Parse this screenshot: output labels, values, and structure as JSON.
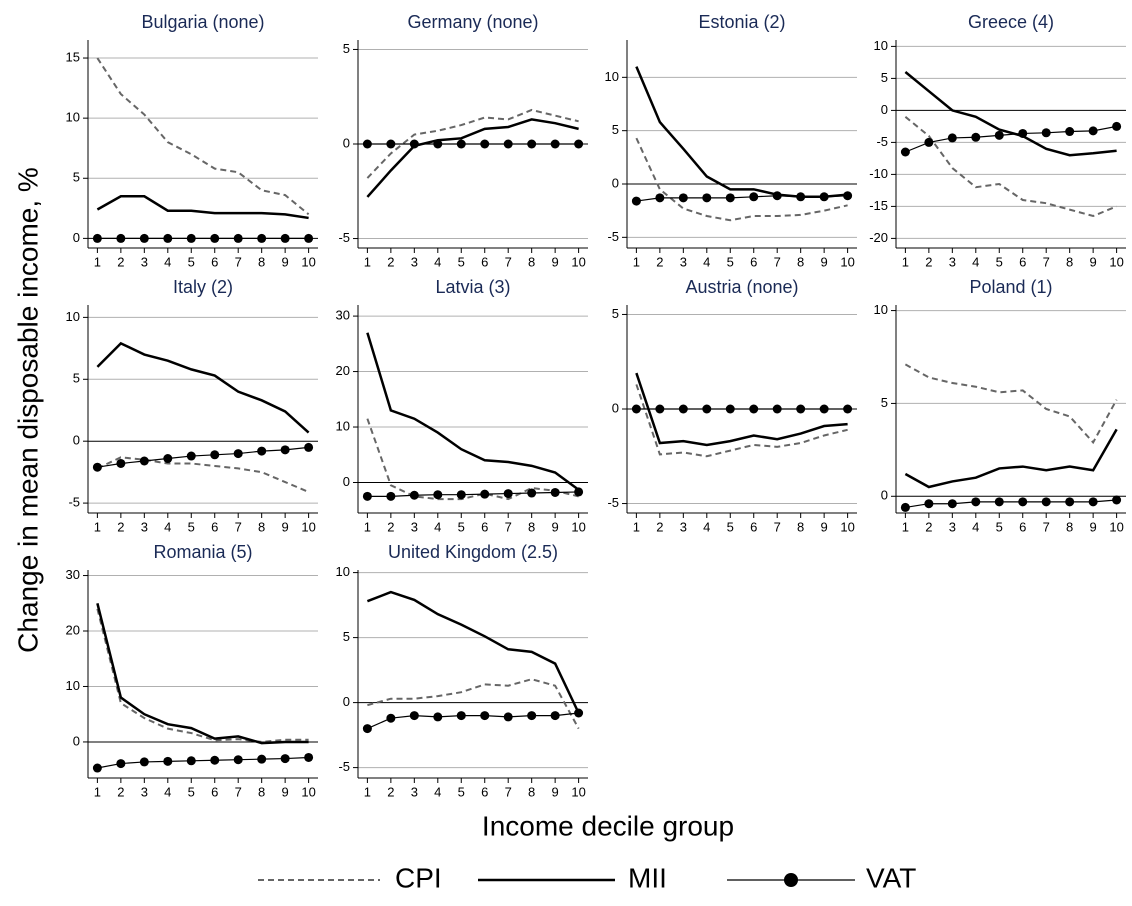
{
  "y_label": "Change in mean disposable income, %",
  "x_label": "Income decile group",
  "chart_data": [
    {
      "type": "line",
      "title": "Bulgaria (none)",
      "x": [
        1,
        2,
        3,
        4,
        5,
        6,
        7,
        8,
        9,
        10
      ],
      "xlim": [
        0.6,
        10.4
      ],
      "xticks": [
        1,
        2,
        3,
        4,
        5,
        6,
        7,
        8,
        9,
        10
      ],
      "ylim": [
        -0.8,
        16.5
      ],
      "yticks": [
        0,
        5,
        10,
        15
      ],
      "grid": true,
      "series": [
        {
          "name": "CPI",
          "color": "#666666",
          "style": "dashed",
          "values": [
            15,
            12,
            10.3,
            8,
            7,
            5.8,
            5.5,
            4,
            3.6,
            2
          ]
        },
        {
          "name": "MII",
          "color": "#000000",
          "style": "solid",
          "values": [
            2.4,
            3.5,
            3.5,
            2.3,
            2.3,
            2.1,
            2.1,
            2.1,
            2,
            1.7
          ]
        },
        {
          "name": "VAT",
          "color": "#000000",
          "style": "markers",
          "values": [
            0,
            0,
            0,
            0,
            0,
            0,
            0,
            0,
            0,
            0
          ]
        }
      ]
    },
    {
      "type": "line",
      "title": "Germany (none)",
      "x": [
        1,
        2,
        3,
        4,
        5,
        6,
        7,
        8,
        9,
        10
      ],
      "xlim": [
        0.6,
        10.4
      ],
      "xticks": [
        1,
        2,
        3,
        4,
        5,
        6,
        7,
        8,
        9,
        10
      ],
      "ylim": [
        -5.5,
        5.5
      ],
      "yticks": [
        -5,
        0,
        5
      ],
      "grid": true,
      "series": [
        {
          "name": "CPI",
          "color": "#666666",
          "style": "dashed",
          "values": [
            -1.8,
            -0.5,
            0.5,
            0.7,
            1,
            1.4,
            1.3,
            1.8,
            1.5,
            1.2
          ]
        },
        {
          "name": "MII",
          "color": "#000000",
          "style": "solid",
          "values": [
            -2.8,
            -1.4,
            -0.1,
            0.2,
            0.3,
            0.8,
            0.9,
            1.3,
            1.1,
            0.8
          ]
        },
        {
          "name": "VAT",
          "color": "#000000",
          "style": "markers",
          "values": [
            0,
            0,
            0,
            0,
            0,
            0,
            0,
            0,
            0,
            0
          ]
        }
      ]
    },
    {
      "type": "line",
      "title": "Estonia (2)",
      "x": [
        1,
        2,
        3,
        4,
        5,
        6,
        7,
        8,
        9,
        10
      ],
      "xlim": [
        0.6,
        10.4
      ],
      "xticks": [
        1,
        2,
        3,
        4,
        5,
        6,
        7,
        8,
        9,
        10
      ],
      "ylim": [
        -6,
        13.5
      ],
      "yticks": [
        -5,
        0,
        5,
        10
      ],
      "grid": true,
      "series": [
        {
          "name": "CPI",
          "color": "#666666",
          "style": "dashed",
          "values": [
            4.3,
            -0.5,
            -2.3,
            -3,
            -3.4,
            -3,
            -3,
            -2.9,
            -2.5,
            -2
          ]
        },
        {
          "name": "MII",
          "color": "#000000",
          "style": "solid",
          "values": [
            11,
            5.8,
            3.3,
            0.7,
            -0.5,
            -0.5,
            -1,
            -1.2,
            -1.2,
            -1
          ]
        },
        {
          "name": "VAT",
          "color": "#000000",
          "style": "markers",
          "values": [
            -1.6,
            -1.3,
            -1.3,
            -1.3,
            -1.3,
            -1.2,
            -1.1,
            -1.2,
            -1.2,
            -1.1
          ]
        }
      ]
    },
    {
      "type": "line",
      "title": "Greece (4)",
      "x": [
        1,
        2,
        3,
        4,
        5,
        6,
        7,
        8,
        9,
        10
      ],
      "xlim": [
        0.6,
        10.4
      ],
      "xticks": [
        1,
        2,
        3,
        4,
        5,
        6,
        7,
        8,
        9,
        10
      ],
      "ylim": [
        -21.5,
        11
      ],
      "yticks": [
        -20,
        -15,
        -10,
        -5,
        0,
        5,
        10
      ],
      "grid": true,
      "series": [
        {
          "name": "CPI",
          "color": "#666666",
          "style": "dashed",
          "values": [
            -1,
            -4,
            -9,
            -12,
            -11.5,
            -14,
            -14.5,
            -15.5,
            -16.5,
            -15
          ]
        },
        {
          "name": "MII",
          "color": "#000000",
          "style": "solid",
          "values": [
            6,
            3,
            0,
            -1,
            -3,
            -4,
            -6,
            -7,
            -6.7,
            -6.3
          ]
        },
        {
          "name": "VAT",
          "color": "#000000",
          "style": "markers",
          "values": [
            -6.5,
            -5,
            -4.3,
            -4.2,
            -3.9,
            -3.6,
            -3.5,
            -3.3,
            -3.2,
            -2.5
          ]
        }
      ]
    },
    {
      "type": "line",
      "title": "Italy (2)",
      "x": [
        1,
        2,
        3,
        4,
        5,
        6,
        7,
        8,
        9,
        10
      ],
      "xlim": [
        0.6,
        10.4
      ],
      "xticks": [
        1,
        2,
        3,
        4,
        5,
        6,
        7,
        8,
        9,
        10
      ],
      "ylim": [
        -5.8,
        11
      ],
      "yticks": [
        -5,
        0,
        5,
        10
      ],
      "grid": true,
      "series": [
        {
          "name": "CPI",
          "color": "#666666",
          "style": "dashed",
          "values": [
            -2.2,
            -1.3,
            -1.5,
            -1.8,
            -1.8,
            -2,
            -2.2,
            -2.5,
            -3.3,
            -4.1
          ]
        },
        {
          "name": "MII",
          "color": "#000000",
          "style": "solid",
          "values": [
            6,
            7.9,
            7,
            6.5,
            5.8,
            5.3,
            4,
            3.3,
            2.4,
            0.7
          ]
        },
        {
          "name": "VAT",
          "color": "#000000",
          "style": "markers",
          "values": [
            -2.1,
            -1.8,
            -1.6,
            -1.4,
            -1.2,
            -1.1,
            -1,
            -0.8,
            -0.7,
            -0.5
          ]
        }
      ]
    },
    {
      "type": "line",
      "title": "Latvia (3)",
      "x": [
        1,
        2,
        3,
        4,
        5,
        6,
        7,
        8,
        9,
        10
      ],
      "xlim": [
        0.6,
        10.4
      ],
      "xticks": [
        1,
        2,
        3,
        4,
        5,
        6,
        7,
        8,
        9,
        10
      ],
      "ylim": [
        -5.5,
        32
      ],
      "yticks": [
        0,
        10,
        20,
        30
      ],
      "grid": true,
      "series": [
        {
          "name": "CPI",
          "color": "#666666",
          "style": "dashed",
          "values": [
            11.5,
            -0.5,
            -2.5,
            -3,
            -3,
            -2,
            -3,
            -1,
            -1.5,
            -2.5
          ]
        },
        {
          "name": "MII",
          "color": "#000000",
          "style": "solid",
          "values": [
            27,
            13,
            11.5,
            9,
            6,
            4,
            3.7,
            3,
            1.8,
            -1.3
          ]
        },
        {
          "name": "VAT",
          "color": "#000000",
          "style": "markers",
          "values": [
            -2.5,
            -2.5,
            -2.3,
            -2.2,
            -2.2,
            -2.1,
            -2,
            -1.9,
            -1.8,
            -1.7
          ]
        }
      ]
    },
    {
      "type": "line",
      "title": "Austria (none)",
      "x": [
        1,
        2,
        3,
        4,
        5,
        6,
        7,
        8,
        9,
        10
      ],
      "xlim": [
        0.6,
        10.4
      ],
      "xticks": [
        1,
        2,
        3,
        4,
        5,
        6,
        7,
        8,
        9,
        10
      ],
      "ylim": [
        -5.5,
        5.5
      ],
      "yticks": [
        -5,
        0,
        5
      ],
      "grid": true,
      "series": [
        {
          "name": "CPI",
          "color": "#666666",
          "style": "dashed",
          "values": [
            1.3,
            -2.4,
            -2.3,
            -2.5,
            -2.2,
            -1.9,
            -2,
            -1.8,
            -1.4,
            -1.1
          ]
        },
        {
          "name": "MII",
          "color": "#000000",
          "style": "solid",
          "values": [
            1.9,
            -1.8,
            -1.7,
            -1.9,
            -1.7,
            -1.4,
            -1.6,
            -1.3,
            -0.9,
            -0.8
          ]
        },
        {
          "name": "VAT",
          "color": "#000000",
          "style": "markers",
          "values": [
            0,
            0,
            0,
            0,
            0,
            0,
            0,
            0,
            0,
            0
          ]
        }
      ]
    },
    {
      "type": "line",
      "title": "Poland (1)",
      "x": [
        1,
        2,
        3,
        4,
        5,
        6,
        7,
        8,
        9,
        10
      ],
      "xlim": [
        0.6,
        10.4
      ],
      "xticks": [
        1,
        2,
        3,
        4,
        5,
        6,
        7,
        8,
        9,
        10
      ],
      "ylim": [
        -0.9,
        10.3
      ],
      "yticks": [
        0,
        5,
        10
      ],
      "grid": true,
      "series": [
        {
          "name": "CPI",
          "color": "#666666",
          "style": "dashed",
          "values": [
            7.1,
            6.4,
            6.1,
            5.9,
            5.6,
            5.7,
            4.7,
            4.3,
            2.9,
            5.2
          ]
        },
        {
          "name": "MII",
          "color": "#000000",
          "style": "solid",
          "values": [
            1.2,
            0.5,
            0.8,
            1,
            1.5,
            1.6,
            1.4,
            1.6,
            1.4,
            3.6
          ]
        },
        {
          "name": "VAT",
          "color": "#000000",
          "style": "markers",
          "values": [
            -0.6,
            -0.4,
            -0.4,
            -0.3,
            -0.3,
            -0.3,
            -0.3,
            -0.3,
            -0.3,
            -0.2
          ]
        }
      ]
    },
    {
      "type": "line",
      "title": "Romania (5)",
      "x": [
        1,
        2,
        3,
        4,
        5,
        6,
        7,
        8,
        9,
        10
      ],
      "xlim": [
        0.6,
        10.4
      ],
      "xticks": [
        1,
        2,
        3,
        4,
        5,
        6,
        7,
        8,
        9,
        10
      ],
      "ylim": [
        -6.5,
        31
      ],
      "yticks": [
        0,
        10,
        20,
        30
      ],
      "grid": true,
      "series": [
        {
          "name": "CPI",
          "color": "#666666",
          "style": "dashed",
          "values": [
            24,
            7,
            4.3,
            2.4,
            1.6,
            0.3,
            0.5,
            0,
            0.4,
            0.4
          ]
        },
        {
          "name": "MII",
          "color": "#000000",
          "style": "solid",
          "values": [
            25,
            8,
            5,
            3.2,
            2.5,
            0.6,
            1,
            -0.2,
            0,
            0
          ]
        },
        {
          "name": "VAT",
          "color": "#000000",
          "style": "markers",
          "values": [
            -4.7,
            -3.9,
            -3.6,
            -3.5,
            -3.4,
            -3.3,
            -3.2,
            -3.1,
            -3,
            -2.8
          ]
        }
      ]
    },
    {
      "type": "line",
      "title": "United Kingdom (2.5)",
      "x": [
        1,
        2,
        3,
        4,
        5,
        6,
        7,
        8,
        9,
        10
      ],
      "xlim": [
        0.6,
        10.4
      ],
      "xticks": [
        1,
        2,
        3,
        4,
        5,
        6,
        7,
        8,
        9,
        10
      ],
      "ylim": [
        -5.8,
        10.2
      ],
      "yticks": [
        -5,
        0,
        5,
        10
      ],
      "grid": true,
      "series": [
        {
          "name": "CPI",
          "color": "#666666",
          "style": "dashed",
          "values": [
            -0.2,
            0.3,
            0.3,
            0.5,
            0.8,
            1.4,
            1.3,
            1.8,
            1.3,
            -2
          ]
        },
        {
          "name": "MII",
          "color": "#000000",
          "style": "solid",
          "values": [
            7.8,
            8.5,
            7.9,
            6.8,
            6,
            5.1,
            4.1,
            3.9,
            3,
            -0.8
          ]
        },
        {
          "name": "VAT",
          "color": "#000000",
          "style": "markers",
          "values": [
            -2,
            -1.2,
            -1,
            -1.1,
            -1,
            -1,
            -1.1,
            -1,
            -1,
            -0.8
          ]
        }
      ]
    }
  ]
}
